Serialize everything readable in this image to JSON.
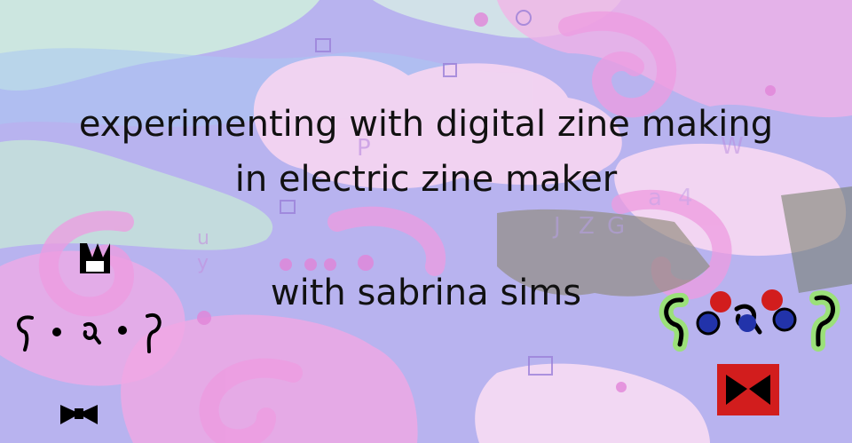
{
  "title": {
    "line1": "experimenting with digital zine making",
    "line2": "in electric zine maker"
  },
  "byline": "with sabrina sims",
  "background": {
    "letters": [
      "P",
      "W",
      "a",
      "4",
      "J",
      "Z",
      "G",
      "u",
      "y"
    ],
    "colors": {
      "lavender": "#b7b2ee",
      "pink": "#f2a8e6",
      "light_pink": "#f6d2f0",
      "mint": "#c9ecd6",
      "blue": "#a8c6f2",
      "text": "#111111"
    }
  },
  "characters": [
    {
      "name": "small-ink-creature",
      "colors": [
        "#000000",
        "#ffffff"
      ]
    },
    {
      "name": "colorful-ink-creature",
      "colors": [
        "#000000",
        "#d21d1d",
        "#2233aa",
        "#9be07a"
      ]
    }
  ]
}
